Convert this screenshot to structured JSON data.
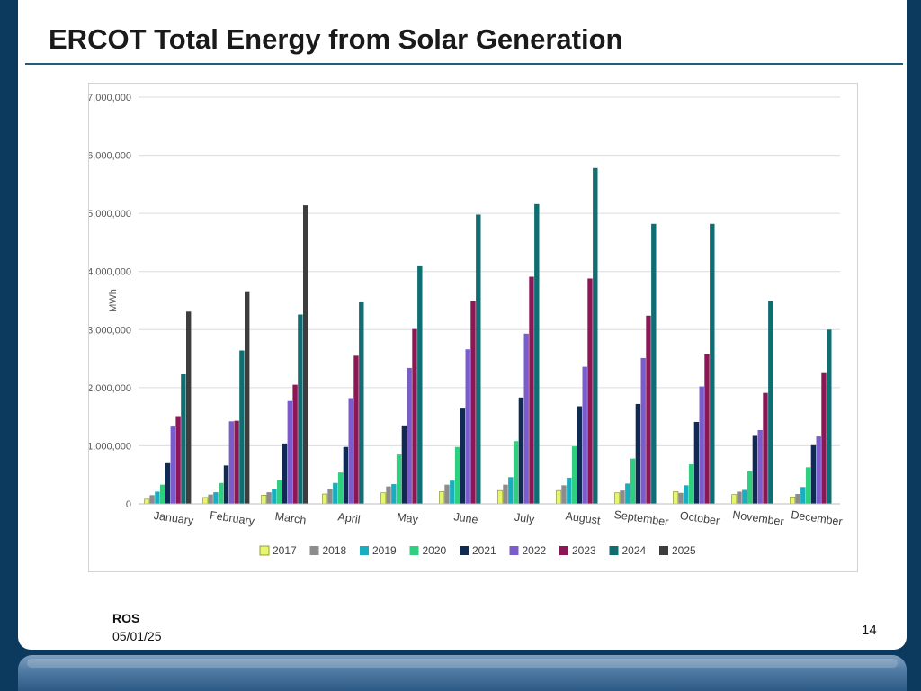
{
  "slide": {
    "title": "ERCOT Total Energy from Solar Generation",
    "footer_org": "ROS",
    "footer_date": "05/01/25",
    "page_number": "14"
  },
  "chart_data": {
    "type": "bar",
    "title": "",
    "xlabel": "",
    "ylabel": "MWh",
    "ylim": [
      0,
      7000000
    ],
    "yticks": [
      0,
      1000000,
      2000000,
      3000000,
      4000000,
      5000000,
      6000000,
      7000000
    ],
    "ytick_labels": [
      "0",
      "1,000,000",
      "2,000,000",
      "3,000,000",
      "4,000,000",
      "5,000,000",
      "6,000,000",
      "7,000,000"
    ],
    "grid": true,
    "legend": "bottom",
    "categories": [
      "January",
      "February",
      "March",
      "April",
      "May",
      "June",
      "July",
      "August",
      "September",
      "October",
      "November",
      "December"
    ],
    "series": [
      {
        "name": "2017",
        "color": "#e8f56e",
        "values": [
          80000,
          110000,
          150000,
          170000,
          190000,
          210000,
          230000,
          230000,
          190000,
          210000,
          160000,
          120000
        ]
      },
      {
        "name": "2018",
        "color": "#8c8c8c",
        "values": [
          150000,
          160000,
          200000,
          260000,
          300000,
          330000,
          330000,
          320000,
          230000,
          190000,
          210000,
          170000
        ]
      },
      {
        "name": "2019",
        "color": "#18aec0",
        "values": [
          210000,
          200000,
          250000,
          360000,
          340000,
          400000,
          460000,
          450000,
          350000,
          320000,
          240000,
          290000
        ]
      },
      {
        "name": "2020",
        "color": "#2fcf7f",
        "values": [
          330000,
          360000,
          410000,
          540000,
          850000,
          980000,
          1080000,
          990000,
          780000,
          680000,
          560000,
          630000
        ]
      },
      {
        "name": "2021",
        "color": "#102a54",
        "values": [
          700000,
          660000,
          1040000,
          980000,
          1350000,
          1640000,
          1830000,
          1680000,
          1720000,
          1410000,
          1170000,
          1010000
        ]
      },
      {
        "name": "2022",
        "color": "#7a5ccc",
        "values": [
          1330000,
          1420000,
          1770000,
          1820000,
          2340000,
          2660000,
          2930000,
          2360000,
          2510000,
          2020000,
          1270000,
          1160000
        ]
      },
      {
        "name": "2023",
        "color": "#8c1756",
        "values": [
          1510000,
          1430000,
          2050000,
          2550000,
          3010000,
          3490000,
          3910000,
          3880000,
          3240000,
          2580000,
          1910000,
          2250000
        ]
      },
      {
        "name": "2024",
        "color": "#0f6e72",
        "values": [
          2230000,
          2640000,
          3260000,
          3470000,
          4090000,
          4980000,
          5160000,
          5780000,
          4820000,
          4820000,
          3490000,
          3000000
        ]
      },
      {
        "name": "2025",
        "color": "#3d3d3d",
        "values": [
          3310000,
          3660000,
          5140000,
          null,
          null,
          null,
          null,
          null,
          null,
          null,
          null,
          null
        ]
      }
    ]
  }
}
